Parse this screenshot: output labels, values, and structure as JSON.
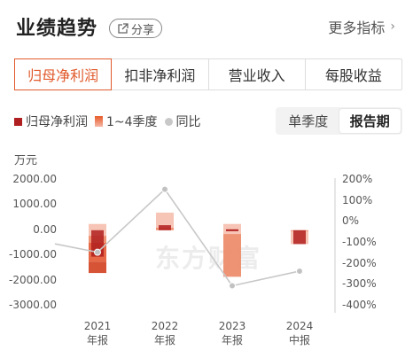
{
  "header": {
    "title": "业绩趋势",
    "share_label": "分享",
    "more_label": "更多指标"
  },
  "tabs": [
    {
      "label": "归母净利润",
      "active": true
    },
    {
      "label": "扣非净利润",
      "active": false
    },
    {
      "label": "营业收入",
      "active": false
    },
    {
      "label": "每股收益",
      "active": false
    }
  ],
  "legend": {
    "items": [
      "归母净利润",
      "1~4季度",
      "同比"
    ]
  },
  "period_toggle": {
    "options": [
      "单季度",
      "报告期"
    ],
    "selected": "报告期"
  },
  "watermark": "东方财富",
  "colors": {
    "accent": "#e05a2b",
    "annual_bar": "#b01f1f",
    "quarter_bar_light": "#f5b7a5",
    "yoy_line": "#c8c8c8"
  },
  "chart_data": {
    "type": "bar",
    "unit_label": "万元",
    "categories": [
      [
        "2021",
        "年报"
      ],
      [
        "2022",
        "年报"
      ],
      [
        "2023",
        "年报"
      ],
      [
        "2024",
        "中报"
      ]
    ],
    "left_axis": {
      "ticks": [
        "2000.00",
        "1000.00",
        "0.00",
        "-1000.00",
        "-2000.00",
        "-3000.00"
      ],
      "ylim": [
        -3000,
        2000
      ]
    },
    "right_axis": {
      "ticks": [
        "200%",
        "100%",
        "0%",
        "-100%",
        "-200%",
        "-300%",
        "-400%"
      ],
      "ylim": [
        -400,
        200
      ]
    },
    "series": [
      {
        "name": "归母净利润",
        "values": [
          -1050,
          200,
          0,
          -550
        ]
      },
      {
        "name": "1~4季度",
        "stacks": [
          [
            [
              -220,
              250
            ],
            [
              -500,
              -220
            ],
            [
              -1250,
              -500
            ],
            [
              -1700,
              -1250
            ]
          ],
          [
            [
              100,
              700
            ],
            [
              0,
              100
            ],
            [
              0,
              0
            ],
            [
              0,
              0
            ]
          ],
          [
            [
              -150,
              250
            ],
            [
              -1850,
              -150
            ],
            [
              0,
              0
            ],
            [
              0,
              0
            ]
          ],
          [
            [
              -550,
              -40
            ],
            [
              -40,
              0
            ],
            [
              0,
              0
            ],
            [
              0,
              0
            ]
          ]
        ]
      },
      {
        "name": "同比",
        "values": [
          -145,
          155,
          -305,
          -235
        ]
      }
    ],
    "grid": false
  }
}
